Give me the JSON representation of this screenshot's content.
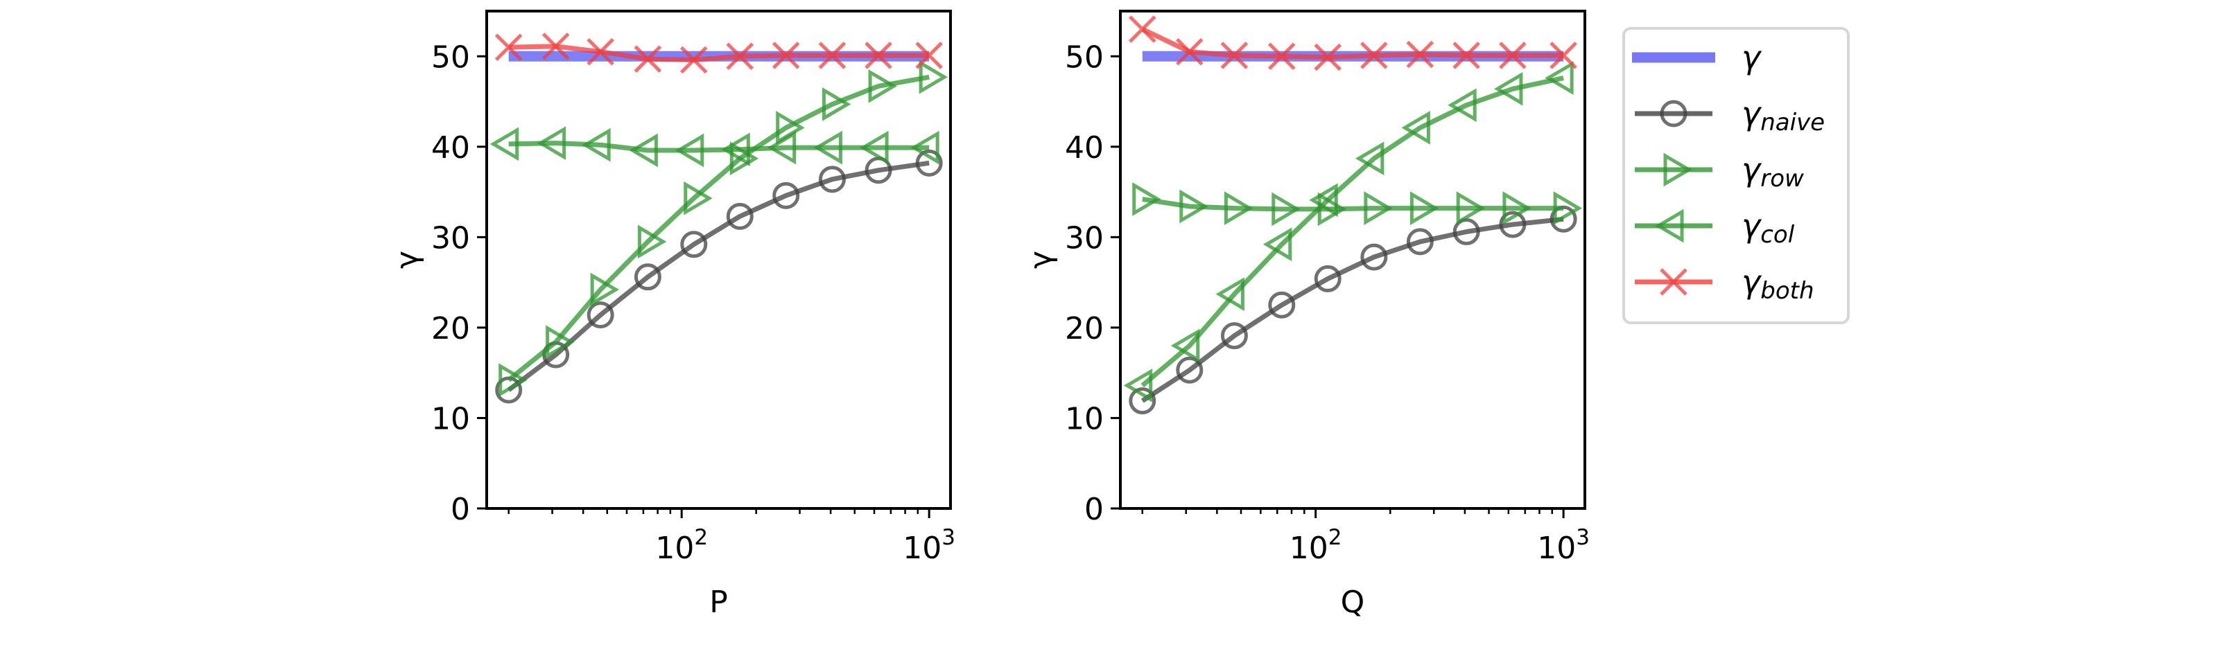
{
  "chart_data": [
    {
      "type": "line",
      "xlabel": "P",
      "ylabel": "γ",
      "xscale": "log",
      "xlim": [
        16.3,
        1220
      ],
      "ylim": [
        0,
        55
      ],
      "yticks": [
        "0",
        "10",
        "20",
        "30",
        "40",
        "50"
      ],
      "xticks": [
        {
          "base": "10",
          "exp": "2",
          "value": 100
        },
        {
          "base": "10",
          "exp": "3",
          "value": 1000
        }
      ],
      "grid": false,
      "x": [
        20,
        31,
        47,
        73,
        112,
        172,
        264,
        406,
        624,
        1000
      ],
      "series": [
        {
          "key": "gamma",
          "values": [
            50,
            50,
            50,
            50,
            50,
            50,
            50,
            50,
            50,
            50
          ]
        },
        {
          "key": "naive",
          "values": [
            13.1,
            17.0,
            21.4,
            25.6,
            29.2,
            32.3,
            34.6,
            36.4,
            37.4,
            38.2
          ]
        },
        {
          "key": "row",
          "values": [
            14.2,
            18.4,
            24.2,
            29.5,
            34.3,
            38.7,
            42.1,
            44.7,
            46.7,
            47.7
          ]
        },
        {
          "key": "col",
          "values": [
            40.3,
            40.4,
            40.2,
            39.6,
            39.6,
            39.7,
            39.9,
            39.9,
            39.9,
            39.9
          ]
        },
        {
          "key": "both",
          "values": [
            51.0,
            51.1,
            50.5,
            49.7,
            49.6,
            50.0,
            50.1,
            50.1,
            50.1,
            50.1
          ]
        }
      ]
    },
    {
      "type": "line",
      "xlabel": "Q",
      "ylabel": "γ",
      "xscale": "log",
      "xlim": [
        16.3,
        1220
      ],
      "ylim": [
        0,
        55
      ],
      "yticks": [
        "0",
        "10",
        "20",
        "30",
        "40",
        "50"
      ],
      "xticks": [
        {
          "base": "10",
          "exp": "2",
          "value": 100
        },
        {
          "base": "10",
          "exp": "3",
          "value": 1000
        }
      ],
      "grid": false,
      "x": [
        20,
        31,
        47,
        73,
        112,
        172,
        264,
        406,
        624,
        1000
      ],
      "series": [
        {
          "key": "gamma",
          "values": [
            50,
            50,
            50,
            50,
            50,
            50,
            50,
            50,
            50,
            50
          ]
        },
        {
          "key": "naive",
          "values": [
            11.9,
            15.3,
            19.1,
            22.5,
            25.4,
            27.8,
            29.5,
            30.6,
            31.4,
            32.0
          ]
        },
        {
          "key": "row",
          "values": [
            34.2,
            33.4,
            33.2,
            33.1,
            33.1,
            33.2,
            33.2,
            33.2,
            33.2,
            33.2
          ]
        },
        {
          "key": "col",
          "values": [
            13.6,
            18.0,
            23.7,
            29.2,
            34.1,
            38.7,
            42.1,
            44.6,
            46.4,
            47.6
          ]
        },
        {
          "key": "both",
          "values": [
            53.0,
            50.5,
            50.1,
            50.0,
            49.9,
            50.1,
            50.2,
            50.1,
            50.1,
            50.1
          ]
        }
      ]
    }
  ],
  "legend": {
    "placement": "right, outside",
    "entries": [
      {
        "key": "gamma",
        "symbol": "γ",
        "sub": "",
        "color": "#7878f5",
        "marker": "none"
      },
      {
        "key": "naive",
        "symbol": "γ",
        "sub": "naive",
        "color": "#404040",
        "marker": "circle"
      },
      {
        "key": "row",
        "symbol": "γ",
        "sub": "row",
        "color": "#2e962e",
        "marker": "triangle-right"
      },
      {
        "key": "col",
        "symbol": "γ",
        "sub": "col",
        "color": "#2e962e",
        "marker": "triangle-left"
      },
      {
        "key": "both",
        "symbol": "γ",
        "sub": "both",
        "color": "#f23c3c",
        "marker": "x"
      }
    ]
  }
}
